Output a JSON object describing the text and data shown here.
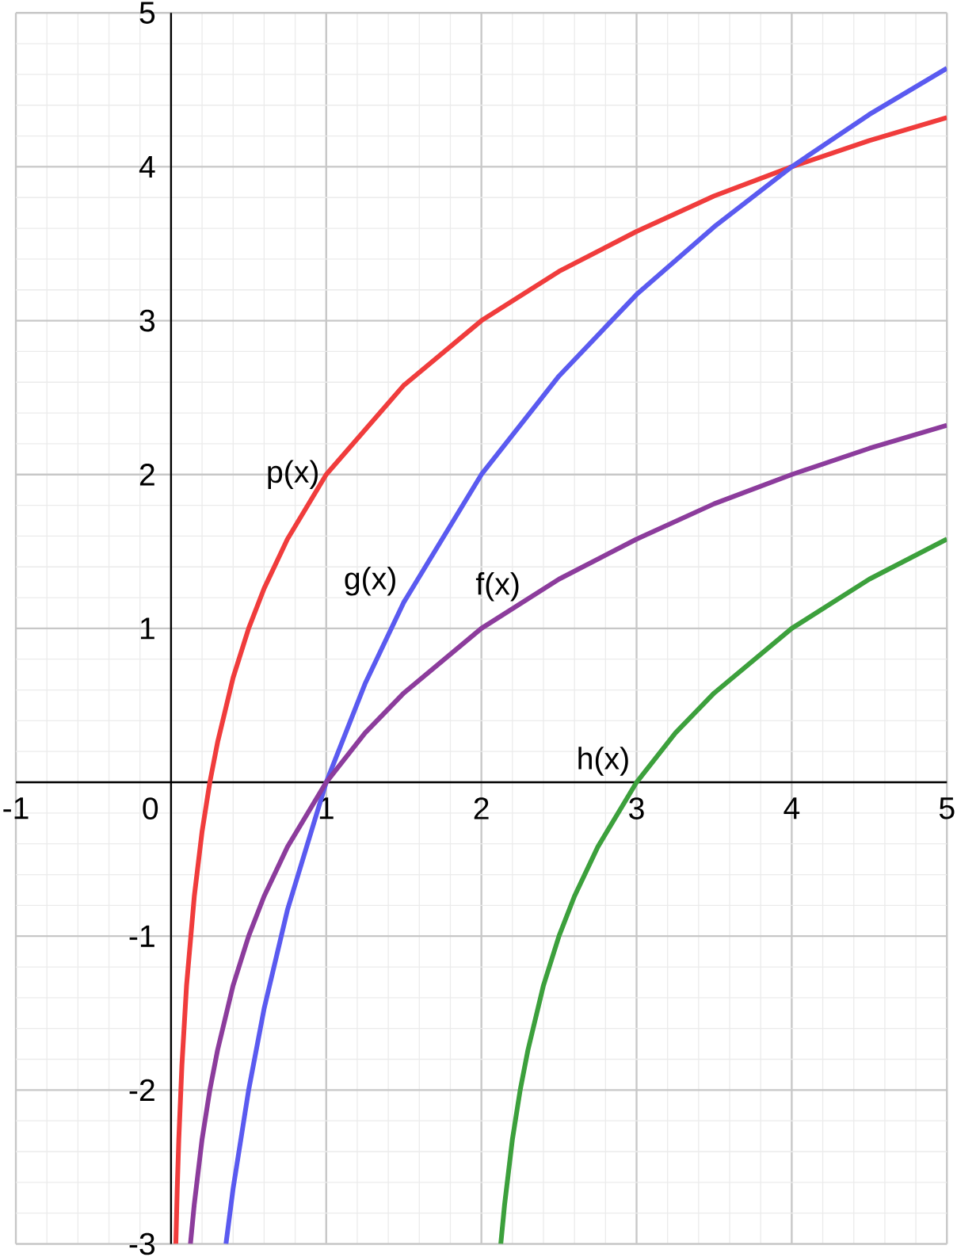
{
  "chart_data": {
    "type": "line",
    "xlim": [
      -1,
      5
    ],
    "ylim": [
      -3,
      5
    ],
    "xticks": [
      -1,
      0,
      1,
      2,
      3,
      4,
      5
    ],
    "yticks": [
      -3,
      -2,
      -1,
      {
        "value": 0,
        "label": null
      },
      1,
      2,
      3,
      4,
      5
    ],
    "grid": true,
    "legend": false,
    "marker": "none",
    "line_style": "solid",
    "series": [
      {
        "name": "p(x)",
        "color": "#f03c3c",
        "x": [
          0.031,
          0.04,
          0.05,
          0.07,
          0.1,
          0.15,
          0.2,
          0.25,
          0.3,
          0.4,
          0.5,
          0.6,
          0.75,
          1,
          1.5,
          2,
          2.5,
          3,
          3.5,
          4,
          4.5,
          5
        ],
        "values": [
          -3,
          -2.64,
          -2.32,
          -1.84,
          -1.32,
          -0.74,
          -0.32,
          0,
          0.26,
          0.68,
          1,
          1.26,
          1.58,
          2,
          2.58,
          3,
          3.32,
          3.58,
          3.81,
          4,
          4.17,
          4.32
        ]
      },
      {
        "name": "g(x)",
        "color": "#5a5af0",
        "x": [
          0.354,
          0.4,
          0.5,
          0.6,
          0.75,
          1,
          1.25,
          1.5,
          2,
          2.5,
          3,
          3.5,
          4,
          4.5,
          5
        ],
        "values": [
          -3,
          -2.64,
          -2,
          -1.47,
          -0.83,
          0,
          0.64,
          1.17,
          2,
          2.64,
          3.17,
          3.61,
          4,
          4.34,
          4.64
        ]
      },
      {
        "name": "f(x)",
        "color": "#8c3c9c",
        "x": [
          0.125,
          0.15,
          0.2,
          0.25,
          0.3,
          0.4,
          0.5,
          0.6,
          0.75,
          1,
          1.25,
          1.5,
          2,
          2.5,
          3,
          3.5,
          4,
          4.5,
          5
        ],
        "values": [
          -3,
          -2.74,
          -2.32,
          -2,
          -1.74,
          -1.32,
          -1,
          -0.74,
          -0.42,
          0,
          0.32,
          0.58,
          1,
          1.32,
          1.58,
          1.81,
          2,
          2.17,
          2.32
        ]
      },
      {
        "name": "h(x)",
        "color": "#3ca03c",
        "x": [
          2.125,
          2.15,
          2.2,
          2.25,
          2.3,
          2.4,
          2.5,
          2.6,
          2.75,
          3,
          3.25,
          3.5,
          4,
          4.5,
          5
        ],
        "values": [
          -3,
          -2.74,
          -2.32,
          -2,
          -1.74,
          -1.32,
          -1,
          -0.74,
          -0.42,
          0,
          0.32,
          0.58,
          1,
          1.32,
          1.58
        ]
      }
    ]
  }
}
